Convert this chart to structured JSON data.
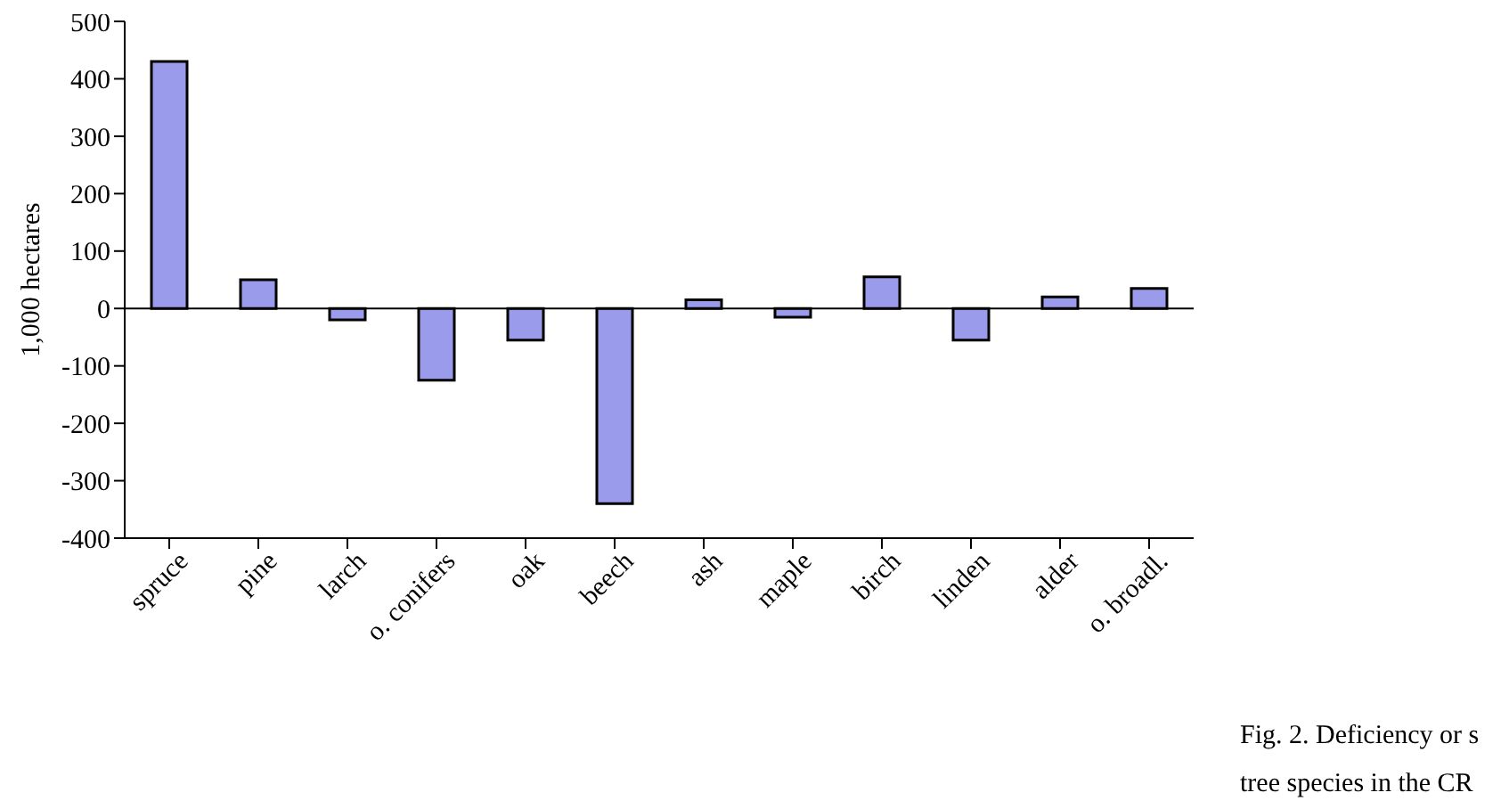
{
  "chart_data": {
    "type": "bar",
    "ylabel": "1,000 hectares",
    "categories": [
      "spruce",
      "pine",
      "larch",
      "o. conifers",
      "oak",
      "beech",
      "ash",
      "maple",
      "birch",
      "linden",
      "alder",
      "o. broadl."
    ],
    "values": [
      430,
      50,
      -20,
      -125,
      -55,
      -340,
      15,
      -15,
      55,
      -55,
      20,
      35
    ],
    "color": "#9b9bec",
    "ylim": [
      -400,
      500
    ],
    "yticks": [
      -400,
      -300,
      -200,
      -100,
      0,
      100,
      200,
      300,
      400,
      500
    ],
    "grid": false,
    "ref_lines": [
      {
        "axis": "y",
        "value": 0,
        "color": "#000000"
      }
    ],
    "annotations": [
      "Fig. 2. Deficiency or s",
      "tree species in the CR"
    ]
  }
}
